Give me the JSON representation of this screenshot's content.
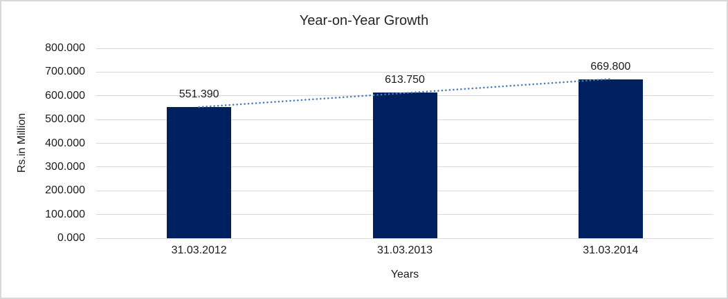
{
  "chart_data": {
    "type": "bar",
    "title": "Year-on-Year Growth",
    "categories": [
      "31.03.2012",
      "31.03.2013",
      "31.03.2014"
    ],
    "values": [
      551.39,
      613.75,
      669.8
    ],
    "value_labels": [
      "551.390",
      "613.750",
      "669.800"
    ],
    "xlabel": "Years",
    "ylabel": "Rs.in Million",
    "ylim": [
      0,
      800
    ],
    "ytick_step": 100,
    "ytick_labels": [
      "0.000",
      "100.000",
      "200.000",
      "300.000",
      "400.000",
      "500.000",
      "600.000",
      "700.000",
      "800.000"
    ],
    "grid": true,
    "legend": "none",
    "trendline": {
      "type": "linear",
      "style": "dotted"
    },
    "colors": {
      "bar": "#002060",
      "trendline": "#4A7EBB",
      "gridline": "#D9D9D9",
      "frame_border": "#D8D8D8",
      "text": "#1a1a1a",
      "title_text": "#262626"
    }
  }
}
